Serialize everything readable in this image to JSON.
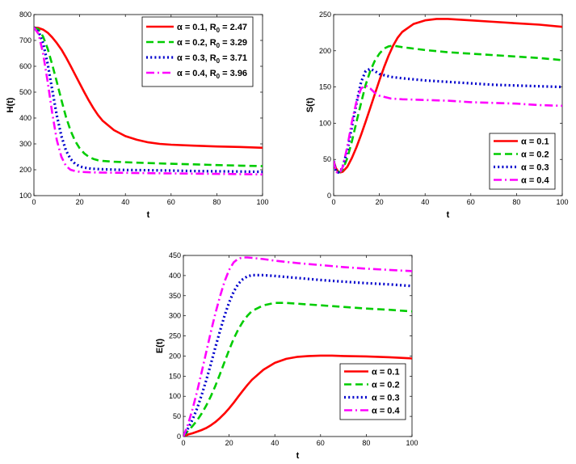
{
  "chart_data": [
    {
      "type": "line",
      "id": "H",
      "xlabel": "t",
      "ylabel": "H(t)",
      "xlim": [
        0,
        100
      ],
      "ylim": [
        100,
        800
      ],
      "xticks": [
        "0",
        "20",
        "40",
        "60",
        "80",
        "100"
      ],
      "yticks": [
        "100",
        "200",
        "300",
        "400",
        "500",
        "600",
        "700",
        "800"
      ],
      "legend_position": "top-right",
      "series": [
        {
          "name": "α = 0.1, R0 = 2.47",
          "alpha": "α = 0.1",
          "r0": "R",
          "r0sub": "0",
          "r0val": " = 2.47",
          "color": "#ff0000",
          "style": "solid",
          "x": [
            0,
            2,
            4,
            6,
            8,
            10,
            12,
            14,
            16,
            18,
            20,
            22,
            24,
            26,
            28,
            30,
            35,
            40,
            45,
            50,
            55,
            60,
            70,
            80,
            90,
            100
          ],
          "y": [
            750,
            748,
            742,
            730,
            712,
            690,
            665,
            635,
            602,
            568,
            534,
            500,
            468,
            438,
            412,
            390,
            353,
            330,
            316,
            306,
            300,
            297,
            293,
            290,
            288,
            285
          ]
        },
        {
          "name": "α = 0.2, R0 = 3.29",
          "alpha": "α = 0.2",
          "r0": "R",
          "r0sub": "0",
          "r0val": " = 3.29",
          "color": "#00cc00",
          "style": "dash",
          "x": [
            0,
            2,
            4,
            6,
            8,
            10,
            12,
            14,
            16,
            18,
            20,
            22,
            24,
            26,
            28,
            30,
            35,
            40,
            50,
            60,
            70,
            80,
            90,
            100
          ],
          "y": [
            750,
            743,
            715,
            668,
            607,
            540,
            470,
            405,
            352,
            312,
            283,
            263,
            250,
            242,
            237,
            234,
            231,
            229,
            226,
            223,
            221,
            218,
            216,
            214
          ]
        },
        {
          "name": "α = 0.3, R0 = 3.71",
          "alpha": "α = 0.3",
          "r0": "R",
          "r0sub": "0",
          "r0val": " = 3.71",
          "color": "#0000cc",
          "style": "dot",
          "x": [
            0,
            2,
            4,
            6,
            8,
            10,
            12,
            14,
            16,
            18,
            20,
            22,
            25,
            30,
            40,
            50,
            60,
            70,
            80,
            90,
            100
          ],
          "y": [
            750,
            735,
            690,
            610,
            510,
            410,
            330,
            275,
            242,
            223,
            213,
            208,
            204,
            202,
            199,
            198,
            197,
            195,
            194,
            193,
            192
          ]
        },
        {
          "name": "α = 0.4, R0 = 3.96",
          "alpha": "α = 0.4",
          "r0": "R",
          "r0sub": "0",
          "r0val": " = 3.96",
          "color": "#ff00ff",
          "style": "dashdot",
          "x": [
            0,
            2,
            4,
            6,
            8,
            10,
            12,
            14,
            16,
            18,
            20,
            25,
            30,
            40,
            50,
            60,
            70,
            80,
            90,
            100
          ],
          "y": [
            750,
            725,
            650,
            540,
            420,
            315,
            250,
            215,
            200,
            195,
            192,
            190,
            189,
            188,
            187,
            186,
            185,
            184,
            183,
            182
          ]
        }
      ]
    },
    {
      "type": "line",
      "id": "S",
      "xlabel": "t",
      "ylabel": "S(t)",
      "xlim": [
        0,
        100
      ],
      "ylim": [
        0,
        250
      ],
      "xticks": [
        "0",
        "20",
        "40",
        "60",
        "80",
        "100"
      ],
      "yticks": [
        "0",
        "50",
        "100",
        "150",
        "200",
        "250"
      ],
      "legend_position": "bottom-right",
      "series": [
        {
          "name": "α = 0.1",
          "alpha": "α = 0.1",
          "color": "#ff0000",
          "style": "solid",
          "x": [
            0,
            1,
            2,
            3,
            4,
            6,
            8,
            10,
            12,
            14,
            16,
            18,
            20,
            22,
            24,
            26,
            28,
            30,
            35,
            40,
            45,
            50,
            55,
            60,
            70,
            80,
            90,
            100
          ],
          "y": [
            48,
            38,
            33,
            32,
            33,
            40,
            52,
            67,
            84,
            102,
            121,
            140,
            159,
            177,
            193,
            207,
            218,
            226,
            237,
            242,
            244,
            244,
            243,
            242,
            240,
            238,
            236,
            233
          ]
        },
        {
          "name": "α = 0.2",
          "alpha": "α = 0.2",
          "color": "#00cc00",
          "style": "dash",
          "x": [
            0,
            1,
            2,
            3,
            4,
            6,
            8,
            10,
            12,
            14,
            16,
            18,
            20,
            22,
            24,
            26,
            28,
            30,
            40,
            50,
            60,
            70,
            80,
            90,
            100
          ],
          "y": [
            48,
            36,
            33,
            33,
            36,
            52,
            75,
            102,
            128,
            153,
            172,
            186,
            196,
            203,
            206,
            207,
            206,
            205,
            201,
            198,
            196,
            194,
            192,
            190,
            187
          ]
        },
        {
          "name": "α = 0.3",
          "alpha": "α = 0.3",
          "color": "#0000cc",
          "style": "dot",
          "x": [
            0,
            1,
            2,
            3,
            4,
            6,
            8,
            10,
            12,
            14,
            16,
            18,
            20,
            25,
            30,
            40,
            50,
            60,
            70,
            80,
            90,
            100
          ],
          "y": [
            48,
            34,
            32,
            34,
            40,
            63,
            95,
            128,
            157,
            172,
            175,
            172,
            168,
            164,
            162,
            159,
            157,
            155,
            153,
            152,
            151,
            150
          ]
        },
        {
          "name": "α = 0.4",
          "alpha": "α = 0.4",
          "color": "#ff00ff",
          "style": "dashdot",
          "x": [
            0,
            1,
            2,
            3,
            4,
            6,
            8,
            10,
            12,
            14,
            16,
            18,
            20,
            25,
            30,
            40,
            50,
            60,
            70,
            80,
            90,
            100
          ],
          "y": [
            48,
            33,
            31,
            33,
            40,
            68,
            102,
            130,
            148,
            152,
            148,
            142,
            138,
            134,
            133,
            132,
            131,
            129,
            128,
            127,
            125,
            124
          ]
        }
      ]
    },
    {
      "type": "line",
      "id": "E",
      "xlabel": "t",
      "ylabel": "E(t)",
      "xlim": [
        0,
        100
      ],
      "ylim": [
        0,
        450
      ],
      "xticks": [
        "0",
        "20",
        "40",
        "60",
        "80",
        "100"
      ],
      "yticks": [
        "0",
        "50",
        "100",
        "150",
        "200",
        "250",
        "300",
        "350",
        "400",
        "450"
      ],
      "legend_position": "bottom-right",
      "series": [
        {
          "name": "α = 0.1",
          "alpha": "α = 0.1",
          "color": "#ff0000",
          "style": "solid",
          "x": [
            0,
            2,
            4,
            6,
            8,
            10,
            12,
            14,
            16,
            18,
            20,
            22,
            24,
            26,
            28,
            30,
            35,
            40,
            45,
            50,
            55,
            60,
            65,
            70,
            80,
            90,
            100
          ],
          "y": [
            0,
            5,
            8,
            12,
            16,
            21,
            28,
            36,
            46,
            57,
            70,
            84,
            99,
            114,
            128,
            141,
            166,
            183,
            193,
            198,
            200,
            201,
            201,
            200,
            199,
            197,
            194
          ]
        },
        {
          "name": "α = 0.2",
          "alpha": "α = 0.2",
          "color": "#00cc00",
          "style": "dash",
          "x": [
            0,
            2,
            4,
            6,
            8,
            10,
            12,
            14,
            16,
            18,
            20,
            22,
            24,
            26,
            28,
            30,
            35,
            40,
            45,
            50,
            60,
            70,
            80,
            90,
            100
          ],
          "y": [
            0,
            14,
            26,
            40,
            57,
            77,
            100,
            126,
            155,
            185,
            215,
            243,
            266,
            285,
            300,
            312,
            326,
            332,
            332,
            330,
            326,
            322,
            318,
            315,
            311
          ]
        },
        {
          "name": "α = 0.3",
          "alpha": "α = 0.3",
          "color": "#0000cc",
          "style": "dot",
          "x": [
            0,
            2,
            4,
            6,
            8,
            10,
            12,
            14,
            16,
            18,
            20,
            22,
            24,
            26,
            28,
            30,
            35,
            40,
            50,
            60,
            70,
            80,
            90,
            100
          ],
          "y": [
            0,
            20,
            42,
            70,
            103,
            140,
            180,
            222,
            262,
            300,
            333,
            360,
            379,
            391,
            398,
            401,
            401,
            399,
            394,
            389,
            385,
            381,
            378,
            374
          ]
        },
        {
          "name": "α = 0.4",
          "alpha": "α = 0.4",
          "color": "#ff00ff",
          "style": "dashdot",
          "x": [
            0,
            2,
            4,
            6,
            8,
            10,
            12,
            14,
            16,
            18,
            20,
            22,
            24,
            26,
            28,
            30,
            35,
            40,
            50,
            60,
            70,
            80,
            90,
            100
          ],
          "y": [
            0,
            30,
            68,
            112,
            160,
            210,
            260,
            306,
            348,
            385,
            414,
            433,
            442,
            445,
            445,
            444,
            441,
            437,
            431,
            426,
            421,
            417,
            414,
            411
          ]
        }
      ]
    }
  ]
}
